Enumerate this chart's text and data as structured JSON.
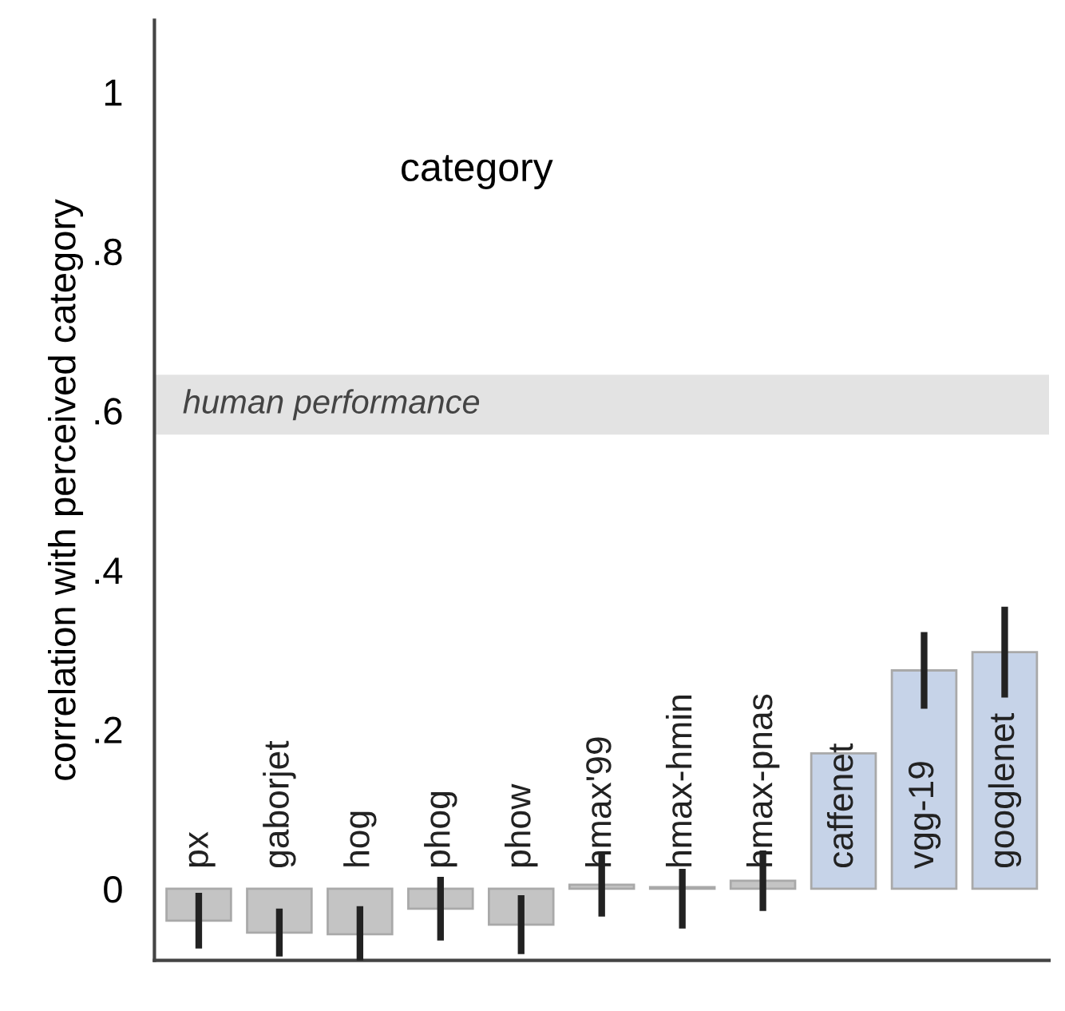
{
  "chart_data": {
    "type": "bar",
    "title": "category",
    "ylabel": "correlation with perceived category",
    "categories": [
      "px",
      "gaborjet",
      "hog",
      "phog",
      "phow",
      "hmax'99",
      "hmax-hmin",
      "hmax-pnas",
      "caffenet",
      "vgg-19",
      "googlenet"
    ],
    "values": [
      -0.04,
      -0.055,
      -0.057,
      -0.025,
      -0.045,
      0.005,
      0.002,
      0.01,
      0.17,
      0.274,
      0.297
    ],
    "errors": [
      0.035,
      0.03,
      0.035,
      0.04,
      0.037,
      0.04,
      [
        -0.05,
        0.025
      ],
      0.038,
      null,
      0.048,
      0.057
    ],
    "colors": [
      "#c4c4c4",
      "#c4c4c4",
      "#c4c4c4",
      "#c4c4c4",
      "#c4c4c4",
      "#c4c4c4",
      "#c4c4c4",
      "#c4c4c4",
      "#c6d3e8",
      "#c6d3e8",
      "#c6d3e8"
    ],
    "ylim": [
      -0.09,
      1.09
    ],
    "yticks": [
      0,
      {
        "value": 0.2,
        "label": ".2"
      },
      {
        "value": 0.4,
        "label": ".4"
      },
      {
        "value": 0.6,
        "label": ".6"
      },
      {
        "value": 0.8,
        "label": ".8"
      },
      1
    ],
    "bands": [
      {
        "axis": "y",
        "from": 0.57,
        "to": 0.645,
        "label": "human performance",
        "color": "#e3e3e3"
      }
    ],
    "tick_labels": "y",
    "grid": false,
    "legend": false
  }
}
